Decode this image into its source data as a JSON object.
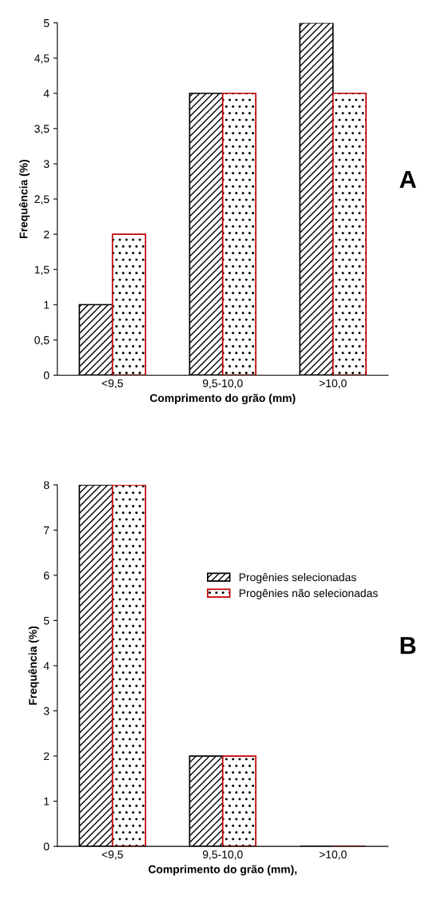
{
  "chart_data": [
    {
      "type": "bar",
      "categories": [
        "<9,5",
        "9,5-10,0",
        ">10,0"
      ],
      "xlabel": "Comprimento do grão (mm)",
      "ylabel": "Frequência (%)",
      "annotations": [
        "A"
      ],
      "series": [
        {
          "color": "#000000",
          "values": [
            1,
            4,
            5
          ]
        },
        {
          "color": "#c00000",
          "values": [
            2,
            4,
            4
          ]
        }
      ],
      "ylim": [
        0,
        5
      ],
      "yticks": [
        0,
        {
          "value": 0.5,
          "label": "0,5"
        },
        1,
        {
          "value": 1.5,
          "label": "1,5"
        },
        2,
        {
          "value": 2.5,
          "label": "2,5"
        },
        3,
        {
          "value": 3.5,
          "label": "3,5"
        },
        4,
        {
          "value": 4.5,
          "label": "4,5"
        },
        5
      ],
      "grid": false,
      "legend": false
    },
    {
      "type": "bar",
      "categories": [
        "<9,5",
        "9,5-10,0",
        ">10,0"
      ],
      "xlabel": "Comprimento do grão (mm),",
      "ylabel": "Frequência (%)",
      "annotations": [
        "B"
      ],
      "series": [
        {
          "name": "Progênies selecionadas",
          "color": "#000000",
          "values": [
            8,
            2,
            0
          ]
        },
        {
          "name": "Progênies não selecionadas",
          "color": "#c00000",
          "values": [
            8,
            2,
            0
          ]
        }
      ],
      "ylim": [
        0,
        8
      ],
      "yticks": [
        0,
        1,
        2,
        3,
        4,
        5,
        6,
        7,
        8
      ],
      "grid": false,
      "legend": "right"
    }
  ]
}
